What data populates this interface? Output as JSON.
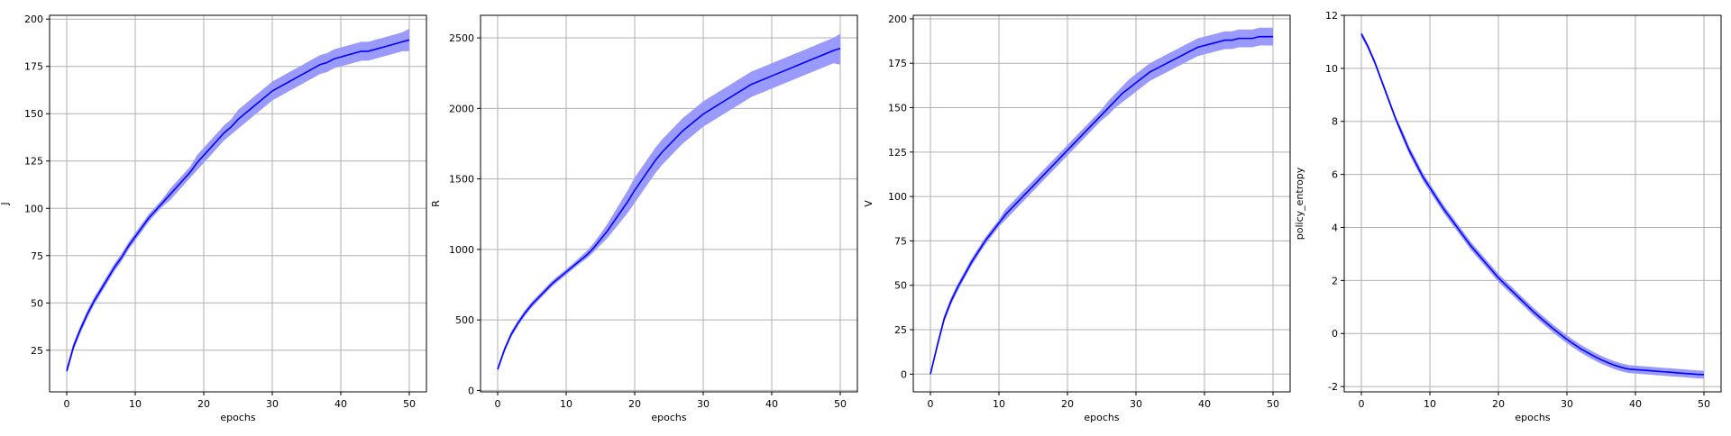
{
  "colors": {
    "line": "#0000ff",
    "band": "#9a9afc",
    "grid": "#b0b0b0",
    "axis": "#000000",
    "background": "#ffffff"
  },
  "chart_data": [
    {
      "type": "line",
      "xlabel": "epochs",
      "ylabel": "J",
      "xlim": [
        -2.5,
        52.5
      ],
      "ylim": [
        3,
        202
      ],
      "xticks": [
        0,
        10,
        20,
        30,
        40,
        50
      ],
      "yticks": [
        25,
        50,
        75,
        100,
        125,
        150,
        175,
        200
      ],
      "grid": true,
      "x": [
        0,
        1,
        2,
        3,
        4,
        5,
        6,
        7,
        8,
        9,
        10,
        11,
        12,
        13,
        14,
        15,
        16,
        17,
        18,
        19,
        20,
        21,
        22,
        23,
        24,
        25,
        26,
        27,
        28,
        29,
        30,
        31,
        32,
        33,
        34,
        35,
        36,
        37,
        38,
        39,
        40,
        41,
        42,
        43,
        44,
        45,
        46,
        47,
        48,
        49,
        50
      ],
      "series": [
        {
          "mean": [
            14,
            27,
            36,
            44,
            51,
            57,
            63,
            69,
            74,
            80,
            85,
            90,
            95,
            99,
            103,
            107,
            111,
            115,
            119,
            124,
            128,
            132,
            136,
            140,
            143,
            147,
            150,
            153,
            156,
            159,
            162,
            164,
            166,
            168,
            170,
            172,
            174,
            176,
            177,
            179,
            180,
            181,
            182,
            183,
            183,
            184,
            185,
            186,
            187,
            188,
            189
          ],
          "lower": [
            12,
            25,
            34,
            42,
            49,
            55,
            61,
            67,
            72,
            78,
            83,
            88,
            93,
            97,
            101,
            104,
            108,
            112,
            116,
            120,
            124,
            128,
            132,
            136,
            139,
            142,
            145,
            148,
            151,
            154,
            157,
            159,
            161,
            163,
            165,
            167,
            169,
            171,
            172,
            174,
            175,
            176,
            177,
            178,
            178,
            179,
            180,
            181,
            182,
            183,
            183
          ],
          "upper": [
            16,
            29,
            38,
            46,
            53,
            59,
            65,
            71,
            76,
            82,
            87,
            92,
            97,
            101,
            105,
            110,
            114,
            118,
            122,
            128,
            132,
            136,
            140,
            144,
            147,
            152,
            155,
            158,
            161,
            164,
            167,
            169,
            171,
            173,
            175,
            177,
            179,
            181,
            182,
            184,
            185,
            186,
            187,
            188,
            188,
            189,
            190,
            191,
            192,
            193,
            195
          ]
        }
      ]
    },
    {
      "type": "line",
      "xlabel": "epochs",
      "ylabel": "R",
      "xlim": [
        -2.5,
        52.5
      ],
      "ylim": [
        -10,
        2660
      ],
      "xticks": [
        0,
        10,
        20,
        30,
        40,
        50
      ],
      "yticks": [
        0,
        500,
        1000,
        1500,
        2000,
        2500
      ],
      "grid": true,
      "x": [
        0,
        1,
        2,
        3,
        4,
        5,
        6,
        7,
        8,
        9,
        10,
        11,
        12,
        13,
        14,
        15,
        16,
        17,
        18,
        19,
        20,
        21,
        22,
        23,
        24,
        25,
        26,
        27,
        28,
        29,
        30,
        31,
        32,
        33,
        34,
        35,
        36,
        37,
        38,
        39,
        40,
        41,
        42,
        43,
        44,
        45,
        46,
        47,
        48,
        49,
        50
      ],
      "series": [
        {
          "mean": [
            150,
            290,
            400,
            480,
            550,
            610,
            660,
            710,
            760,
            800,
            840,
            880,
            920,
            960,
            1010,
            1070,
            1130,
            1200,
            1270,
            1340,
            1420,
            1490,
            1560,
            1630,
            1690,
            1740,
            1790,
            1840,
            1880,
            1920,
            1960,
            1990,
            2020,
            2050,
            2080,
            2110,
            2140,
            2170,
            2190,
            2210,
            2230,
            2250,
            2270,
            2290,
            2310,
            2330,
            2350,
            2370,
            2390,
            2410,
            2425
          ],
          "lower": [
            130,
            270,
            380,
            460,
            530,
            590,
            640,
            690,
            740,
            780,
            820,
            860,
            900,
            935,
            980,
            1030,
            1080,
            1140,
            1200,
            1260,
            1330,
            1400,
            1470,
            1540,
            1600,
            1650,
            1700,
            1750,
            1790,
            1830,
            1870,
            1900,
            1930,
            1960,
            1990,
            2020,
            2050,
            2080,
            2100,
            2120,
            2140,
            2160,
            2180,
            2200,
            2220,
            2240,
            2260,
            2280,
            2300,
            2320,
            2310
          ],
          "upper": [
            170,
            310,
            420,
            500,
            570,
            630,
            680,
            730,
            780,
            820,
            860,
            900,
            945,
            990,
            1045,
            1110,
            1180,
            1260,
            1340,
            1420,
            1510,
            1580,
            1650,
            1720,
            1780,
            1830,
            1880,
            1930,
            1970,
            2010,
            2050,
            2080,
            2110,
            2140,
            2170,
            2200,
            2230,
            2260,
            2280,
            2300,
            2320,
            2340,
            2360,
            2380,
            2400,
            2420,
            2440,
            2460,
            2480,
            2500,
            2530
          ]
        }
      ]
    },
    {
      "type": "line",
      "xlabel": "epochs",
      "ylabel": "V",
      "xlim": [
        -2.5,
        52.5
      ],
      "ylim": [
        -10,
        202
      ],
      "xticks": [
        0,
        10,
        20,
        30,
        40,
        50
      ],
      "yticks": [
        0,
        25,
        50,
        75,
        100,
        125,
        150,
        175,
        200
      ],
      "grid": true,
      "x": [
        0,
        1,
        2,
        3,
        4,
        5,
        6,
        7,
        8,
        9,
        10,
        11,
        12,
        13,
        14,
        15,
        16,
        17,
        18,
        19,
        20,
        21,
        22,
        23,
        24,
        25,
        26,
        27,
        28,
        29,
        30,
        31,
        32,
        33,
        34,
        35,
        36,
        37,
        38,
        39,
        40,
        41,
        42,
        43,
        44,
        45,
        46,
        47,
        48,
        49,
        50
      ],
      "series": [
        {
          "mean": [
            0,
            16,
            31,
            41,
            49,
            56,
            63,
            69,
            75,
            80,
            85,
            90,
            94,
            98,
            102,
            106,
            110,
            114,
            118,
            122,
            126,
            130,
            134,
            138,
            142,
            146,
            150,
            154,
            158,
            161,
            164,
            167,
            170,
            172,
            174,
            176,
            178,
            180,
            182,
            184,
            185,
            186,
            187,
            188,
            188,
            189,
            189,
            189,
            190,
            190,
            190
          ],
          "lower": [
            -1,
            14,
            29,
            39,
            47,
            54,
            61,
            67,
            73,
            78,
            83,
            87,
            91,
            95,
            99,
            103,
            107,
            111,
            115,
            119,
            123,
            127,
            131,
            135,
            139,
            143,
            146,
            150,
            153,
            156,
            159,
            162,
            165,
            167,
            169,
            171,
            173,
            175,
            177,
            179,
            180,
            181,
            182,
            183,
            183,
            184,
            184,
            184,
            185,
            185,
            185
          ],
          "upper": [
            1,
            18,
            33,
            43,
            51,
            58,
            65,
            71,
            77,
            82,
            87,
            93,
            97,
            101,
            105,
            109,
            113,
            117,
            121,
            125,
            129,
            133,
            137,
            141,
            145,
            149,
            154,
            158,
            162,
            166,
            169,
            172,
            175,
            177,
            179,
            181,
            183,
            185,
            187,
            189,
            190,
            191,
            192,
            193,
            193,
            194,
            194,
            194,
            195,
            195,
            195
          ]
        }
      ]
    },
    {
      "type": "line",
      "xlabel": "epochs",
      "ylabel": "policy_entropy",
      "xlim": [
        -2.5,
        52.5
      ],
      "ylim": [
        -2.2,
        12
      ],
      "xticks": [
        0,
        10,
        20,
        30,
        40,
        50
      ],
      "yticks": [
        -2,
        0,
        2,
        4,
        6,
        8,
        10,
        12
      ],
      "grid": true,
      "x": [
        0,
        1,
        2,
        3,
        4,
        5,
        6,
        7,
        8,
        9,
        10,
        11,
        12,
        13,
        14,
        15,
        16,
        17,
        18,
        19,
        20,
        21,
        22,
        23,
        24,
        25,
        26,
        27,
        28,
        29,
        30,
        31,
        32,
        33,
        34,
        35,
        36,
        37,
        38,
        39,
        40,
        41,
        42,
        43,
        44,
        45,
        46,
        47,
        48,
        49,
        50
      ],
      "series": [
        {
          "mean": [
            11.3,
            10.8,
            10.2,
            9.5,
            8.8,
            8.1,
            7.5,
            6.9,
            6.4,
            5.9,
            5.5,
            5.1,
            4.7,
            4.35,
            4.0,
            3.65,
            3.3,
            3.0,
            2.7,
            2.4,
            2.1,
            1.85,
            1.6,
            1.35,
            1.1,
            0.85,
            0.62,
            0.4,
            0.18,
            -0.02,
            -0.22,
            -0.4,
            -0.57,
            -0.72,
            -0.86,
            -0.99,
            -1.1,
            -1.2,
            -1.28,
            -1.34,
            -1.36,
            -1.38,
            -1.4,
            -1.42,
            -1.44,
            -1.46,
            -1.48,
            -1.5,
            -1.52,
            -1.54,
            -1.55
          ],
          "lower": [
            11.2,
            10.7,
            10.1,
            9.4,
            8.7,
            8.0,
            7.35,
            6.75,
            6.25,
            5.75,
            5.35,
            4.95,
            4.55,
            4.2,
            3.85,
            3.5,
            3.15,
            2.85,
            2.55,
            2.25,
            1.95,
            1.7,
            1.45,
            1.2,
            0.95,
            0.7,
            0.47,
            0.25,
            0.03,
            -0.17,
            -0.37,
            -0.55,
            -0.72,
            -0.87,
            -1.01,
            -1.14,
            -1.25,
            -1.35,
            -1.43,
            -1.49,
            -1.51,
            -1.53,
            -1.55,
            -1.57,
            -1.59,
            -1.61,
            -1.63,
            -1.65,
            -1.67,
            -1.69,
            -1.7
          ],
          "upper": [
            11.4,
            10.9,
            10.3,
            9.6,
            8.9,
            8.2,
            7.65,
            7.05,
            6.55,
            6.05,
            5.65,
            5.25,
            4.85,
            4.5,
            4.15,
            3.8,
            3.45,
            3.15,
            2.85,
            2.55,
            2.25,
            2.0,
            1.75,
            1.5,
            1.25,
            1.0,
            0.77,
            0.55,
            0.33,
            0.13,
            -0.07,
            -0.25,
            -0.42,
            -0.57,
            -0.71,
            -0.84,
            -0.95,
            -1.05,
            -1.13,
            -1.19,
            -1.21,
            -1.23,
            -1.25,
            -1.27,
            -1.29,
            -1.31,
            -1.33,
            -1.35,
            -1.37,
            -1.39,
            -1.4
          ]
        }
      ]
    }
  ]
}
